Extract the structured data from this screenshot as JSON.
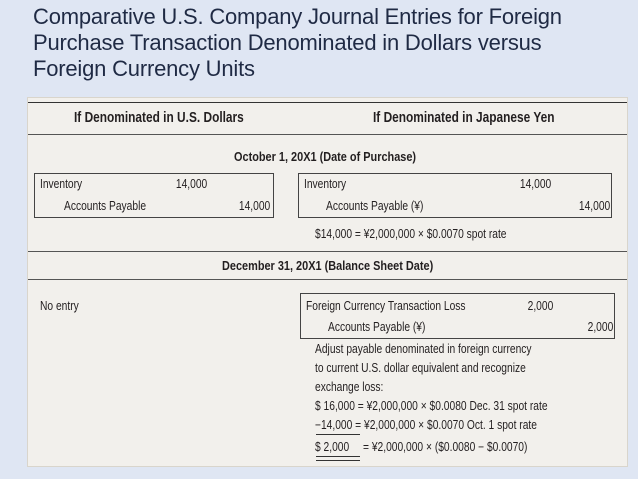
{
  "slide": {
    "title_lines": [
      "Comparative U.S. Company Journal Entries for Foreign",
      "Purchase Transaction Denominated in Dollars versus",
      "Foreign Currency Units"
    ]
  },
  "table": {
    "header_left": "If Denominated in U.S. Dollars",
    "header_right": "If Denominated in Japanese Yen",
    "section1": {
      "date": "October 1, 20X1 (Date of Purchase)",
      "left_entry": {
        "debit_account": "Inventory",
        "debit_amount": "14,000",
        "credit_account": "Accounts Payable",
        "credit_amount": "14,000"
      },
      "right_entry": {
        "debit_account": "Inventory",
        "debit_amount": "14,000",
        "credit_account": "Accounts Payable (¥)",
        "credit_amount": "14,000"
      },
      "note": "$14,000 = ¥2,000,000 × $0.0070 spot rate"
    },
    "section2": {
      "date": "December 31, 20X1 (Balance Sheet Date)",
      "left_text": "No entry",
      "right_entry": {
        "debit_account": "Foreign Currency Transaction Loss",
        "debit_amount": "2,000",
        "credit_account": "Accounts Payable (¥)",
        "credit_amount": "2,000"
      },
      "explanation_lines": [
        "Adjust payable denominated in foreign currency",
        "to current U.S. dollar equivalent and recognize",
        "exchange loss:",
        "$ 16,000 = ¥2,000,000 × $0.0080 Dec. 31 spot rate",
        "−14,000 = ¥2,000,000 × $0.0070 Oct. 1 spot rate"
      ],
      "result_amount": "$  2,000",
      "result_formula": "= ¥2,000,000 × ($0.0080 − $0.0070)"
    }
  }
}
